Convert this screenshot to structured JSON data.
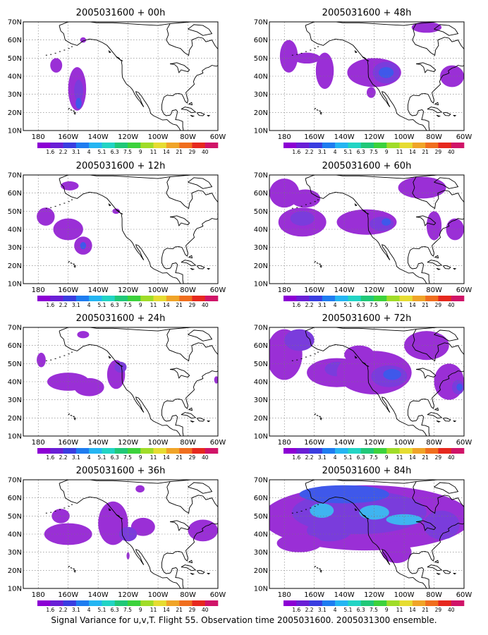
{
  "caption": "Signal Variance for u,v,T. Flight 55. Observation time 2005031600. 2005031300 ensemble.",
  "map_extent": {
    "lon_min": -190,
    "lon_max": -60,
    "lat_min": 10,
    "lat_max": 70
  },
  "lon_ticks": [
    {
      "lon": -180,
      "label": "180"
    },
    {
      "lon": -160,
      "label": "160W"
    },
    {
      "lon": -140,
      "label": "140W"
    },
    {
      "lon": -120,
      "label": "120W"
    },
    {
      "lon": -100,
      "label": "100W"
    },
    {
      "lon": -80,
      "label": "80W"
    },
    {
      "lon": -60,
      "label": "60W"
    }
  ],
  "lat_ticks": [
    {
      "lat": 10,
      "label": "10N"
    },
    {
      "lat": 20,
      "label": "20N"
    },
    {
      "lat": 30,
      "label": "30N"
    },
    {
      "lat": 40,
      "label": "40N"
    },
    {
      "lat": 50,
      "label": "50N"
    },
    {
      "lat": 60,
      "label": "60N"
    },
    {
      "lat": 70,
      "label": "70N"
    }
  ],
  "colorbar": {
    "labels": [
      "1.6",
      "2.2",
      "3.1",
      "4",
      "5.1",
      "6.3",
      "7.5",
      "9",
      "11",
      "14",
      "21",
      "29",
      "40"
    ],
    "colors": [
      "#8c00d4",
      "#6a1fd6",
      "#3a3de0",
      "#1e7cf0",
      "#24b5f2",
      "#22d4c4",
      "#20c878",
      "#3cd23c",
      "#a0dc28",
      "#e6dc32",
      "#f0a428",
      "#f06e1e",
      "#e6281e",
      "#d01468"
    ]
  },
  "colors": {
    "level1": "#9a2fd6",
    "level2": "#7a3cdc",
    "level3": "#3f58ea",
    "level4": "#3fb4f0",
    "land": "#000000",
    "grid": "#777777"
  },
  "panels": [
    {
      "title": "2005031600 + 00h",
      "blobs": [
        {
          "lon": -168,
          "lat": 46,
          "rx": 4,
          "ry": 4,
          "level": 1
        },
        {
          "lon": -154,
          "lat": 33,
          "rx": 6,
          "ry": 12,
          "level": 1
        },
        {
          "lon": -153,
          "lat": 32,
          "rx": 3,
          "ry": 6,
          "level": 2
        },
        {
          "lon": -153,
          "lat": 25,
          "rx": 2,
          "ry": 3,
          "level": 3
        },
        {
          "lon": -150,
          "lat": 60,
          "rx": 2,
          "ry": 1.5,
          "level": 1
        }
      ]
    },
    {
      "title": "2005031600 + 48h",
      "blobs": [
        {
          "lon": -177,
          "lat": 51,
          "rx": 6,
          "ry": 9,
          "level": 1
        },
        {
          "lon": -165,
          "lat": 50,
          "rx": 9,
          "ry": 3,
          "level": 1
        },
        {
          "lon": -153,
          "lat": 43,
          "rx": 6,
          "ry": 10,
          "level": 1
        },
        {
          "lon": -120,
          "lat": 42,
          "rx": 18,
          "ry": 8,
          "level": 1
        },
        {
          "lon": -112,
          "lat": 42,
          "rx": 9,
          "ry": 6,
          "level": 2
        },
        {
          "lon": -112,
          "lat": 42,
          "rx": 5,
          "ry": 3,
          "level": 3
        },
        {
          "lon": -85,
          "lat": 67,
          "rx": 10,
          "ry": 3,
          "level": 1
        },
        {
          "lon": -68,
          "lat": 40,
          "rx": 8,
          "ry": 6,
          "level": 1
        },
        {
          "lon": -122,
          "lat": 31,
          "rx": 3,
          "ry": 3,
          "level": 1
        }
      ]
    },
    {
      "title": "2005031600 + 12h",
      "blobs": [
        {
          "lon": -159,
          "lat": 64,
          "rx": 6,
          "ry": 2.5,
          "level": 1
        },
        {
          "lon": -175,
          "lat": 47,
          "rx": 6,
          "ry": 5,
          "level": 1
        },
        {
          "lon": -160,
          "lat": 40,
          "rx": 10,
          "ry": 6,
          "level": 1
        },
        {
          "lon": -150,
          "lat": 31,
          "rx": 6,
          "ry": 5,
          "level": 1
        },
        {
          "lon": -150,
          "lat": 31,
          "rx": 2,
          "ry": 2,
          "level": 3
        },
        {
          "lon": -128,
          "lat": 50,
          "rx": 2.5,
          "ry": 1.5,
          "level": 1
        }
      ]
    },
    {
      "title": "2005031600 + 60h",
      "blobs": [
        {
          "lon": -180,
          "lat": 60,
          "rx": 10,
          "ry": 8,
          "level": 1
        },
        {
          "lon": -166,
          "lat": 57,
          "rx": 10,
          "ry": 5,
          "level": 1
        },
        {
          "lon": -168,
          "lat": 44,
          "rx": 16,
          "ry": 8,
          "level": 1
        },
        {
          "lon": -168,
          "lat": 46,
          "rx": 8,
          "ry": 4,
          "level": 2
        },
        {
          "lon": -125,
          "lat": 44,
          "rx": 20,
          "ry": 7,
          "level": 1
        },
        {
          "lon": -115,
          "lat": 43,
          "rx": 8,
          "ry": 4,
          "level": 2
        },
        {
          "lon": -112,
          "lat": 44,
          "rx": 3,
          "ry": 2,
          "level": 3
        },
        {
          "lon": -88,
          "lat": 63,
          "rx": 16,
          "ry": 6,
          "level": 1
        },
        {
          "lon": -80,
          "lat": 42,
          "rx": 5,
          "ry": 8,
          "level": 1
        },
        {
          "lon": -66,
          "lat": 40,
          "rx": 6,
          "ry": 6,
          "level": 1
        }
      ]
    },
    {
      "title": "2005031600 + 24h",
      "blobs": [
        {
          "lon": -150,
          "lat": 66,
          "rx": 4,
          "ry": 2,
          "level": 1
        },
        {
          "lon": -178,
          "lat": 52,
          "rx": 3,
          "ry": 4,
          "level": 1
        },
        {
          "lon": -160,
          "lat": 40,
          "rx": 14,
          "ry": 5,
          "level": 1
        },
        {
          "lon": -146,
          "lat": 37,
          "rx": 10,
          "ry": 5,
          "level": 1
        },
        {
          "lon": -128,
          "lat": 44,
          "rx": 6,
          "ry": 8,
          "level": 1
        },
        {
          "lon": -125,
          "lat": 48,
          "rx": 4,
          "ry": 3,
          "level": 2
        },
        {
          "lon": -61,
          "lat": 41,
          "rx": 1.5,
          "ry": 2,
          "level": 1
        }
      ]
    },
    {
      "title": "2005031600 + 72h",
      "blobs": [
        {
          "lon": -180,
          "lat": 55,
          "rx": 12,
          "ry": 14,
          "level": 1
        },
        {
          "lon": -170,
          "lat": 63,
          "rx": 10,
          "ry": 6,
          "level": 2
        },
        {
          "lon": -145,
          "lat": 45,
          "rx": 20,
          "ry": 8,
          "level": 1
        },
        {
          "lon": -145,
          "lat": 47,
          "rx": 8,
          "ry": 4,
          "level": 2
        },
        {
          "lon": -120,
          "lat": 45,
          "rx": 25,
          "ry": 12,
          "level": 1
        },
        {
          "lon": -110,
          "lat": 43,
          "rx": 12,
          "ry": 6,
          "level": 2
        },
        {
          "lon": -108,
          "lat": 44,
          "rx": 6,
          "ry": 3,
          "level": 3
        },
        {
          "lon": -85,
          "lat": 60,
          "rx": 15,
          "ry": 8,
          "level": 1
        },
        {
          "lon": -70,
          "lat": 40,
          "rx": 10,
          "ry": 10,
          "level": 1
        },
        {
          "lon": -64,
          "lat": 37,
          "rx": 4,
          "ry": 4,
          "level": 2
        },
        {
          "lon": -63,
          "lat": 37,
          "rx": 2,
          "ry": 2,
          "level": 3
        },
        {
          "lon": -130,
          "lat": 55,
          "rx": 10,
          "ry": 5,
          "level": 1
        }
      ]
    },
    {
      "title": "2005031600 + 36h",
      "blobs": [
        {
          "lon": -165,
          "lat": 50,
          "rx": 6,
          "ry": 4,
          "level": 1
        },
        {
          "lon": -160,
          "lat": 40,
          "rx": 16,
          "ry": 6,
          "level": 1
        },
        {
          "lon": -130,
          "lat": 46,
          "rx": 10,
          "ry": 12,
          "level": 1
        },
        {
          "lon": -110,
          "lat": 44,
          "rx": 8,
          "ry": 5,
          "level": 1
        },
        {
          "lon": -112,
          "lat": 65,
          "rx": 3,
          "ry": 2,
          "level": 1
        },
        {
          "lon": -120,
          "lat": 40,
          "rx": 6,
          "ry": 4,
          "level": 2
        },
        {
          "lon": -120,
          "lat": 28,
          "rx": 1,
          "ry": 2,
          "level": 1
        },
        {
          "lon": -70,
          "lat": 42,
          "rx": 10,
          "ry": 6,
          "level": 1
        }
      ]
    },
    {
      "title": "2005031600 + 84h",
      "blobs": [
        {
          "lon": -125,
          "lat": 49,
          "rx": 70,
          "ry": 18,
          "level": 1
        },
        {
          "lon": -130,
          "lat": 52,
          "rx": 45,
          "ry": 12,
          "level": 2
        },
        {
          "lon": -140,
          "lat": 62,
          "rx": 30,
          "ry": 5,
          "level": 3
        },
        {
          "lon": -120,
          "lat": 52,
          "rx": 10,
          "ry": 4,
          "level": 4
        },
        {
          "lon": -155,
          "lat": 53,
          "rx": 8,
          "ry": 4,
          "level": 4
        },
        {
          "lon": -100,
          "lat": 48,
          "rx": 12,
          "ry": 3,
          "level": 4
        },
        {
          "lon": -150,
          "lat": 42,
          "rx": 15,
          "ry": 6,
          "level": 2
        },
        {
          "lon": -75,
          "lat": 45,
          "rx": 12,
          "ry": 8,
          "level": 2
        },
        {
          "lon": -170,
          "lat": 35,
          "rx": 15,
          "ry": 5,
          "level": 1
        },
        {
          "lon": -105,
          "lat": 30,
          "rx": 10,
          "ry": 6,
          "level": 1
        }
      ]
    }
  ]
}
